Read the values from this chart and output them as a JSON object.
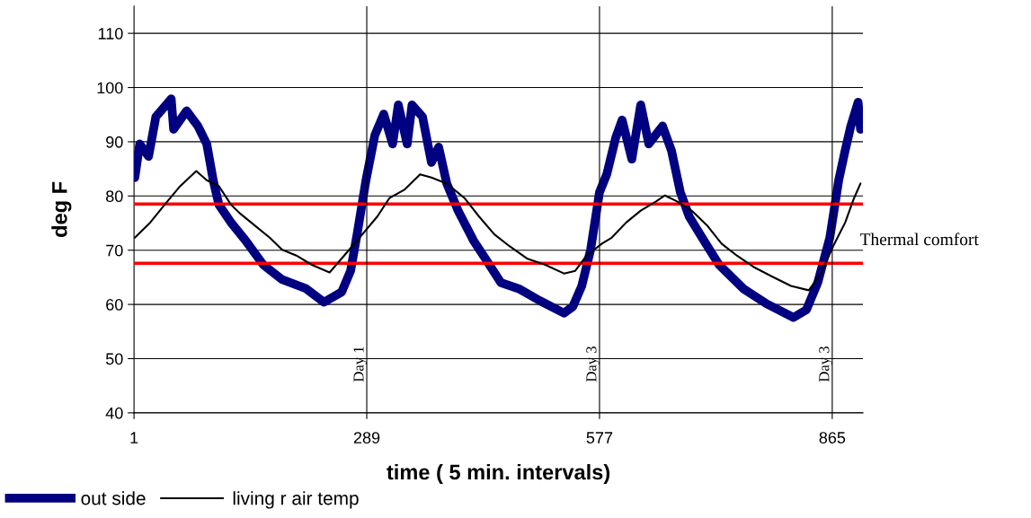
{
  "chart_data": {
    "type": "line",
    "xlabel": "time ( 5 min. intervals)",
    "ylabel": "deg F",
    "xlim": [
      1,
      903
    ],
    "xticks": [
      1,
      289,
      577,
      865
    ],
    "ylim": [
      40,
      115
    ],
    "yticks": [
      40,
      50,
      60,
      70,
      80,
      90,
      100,
      110
    ],
    "grid": "y",
    "legend": "bottom left",
    "marker": "none",
    "line_style": "solid",
    "series": [
      {
        "name": "out side",
        "color": "#000080",
        "x": [
          2,
          8,
          19,
          28,
          47,
          50,
          66,
          80,
          91,
          99,
          106,
          121,
          139,
          161,
          184,
          214,
          236,
          258,
          269,
          277,
          288,
          299,
          310,
          321,
          328,
          339,
          345,
          358,
          369,
          378,
          388,
          402,
          421,
          436,
          455,
          477,
          503,
          533,
          544,
          555,
          566,
          577,
          586,
          597,
          605,
          617,
          628,
          638,
          655,
          666,
          677,
          688,
          706,
          725,
          755,
          784,
          817,
          833,
          847,
          862,
          873,
          881,
          888,
          897,
          900
        ],
        "values": [
          83.4,
          89.6,
          87.3,
          94.6,
          97.9,
          92.3,
          95.7,
          92.9,
          89.6,
          82.9,
          78.4,
          75.1,
          71.8,
          67.3,
          64.6,
          62.9,
          60.4,
          62.3,
          66.2,
          72.9,
          82.9,
          91.2,
          95.1,
          89.6,
          96.8,
          89.6,
          96.8,
          94.6,
          86.2,
          89.0,
          82.3,
          77.3,
          71.8,
          68.4,
          64.0,
          62.9,
          60.7,
          58.4,
          59.6,
          63.4,
          70.1,
          80.7,
          84.0,
          90.7,
          94.0,
          86.8,
          96.8,
          89.6,
          92.9,
          88.4,
          80.7,
          76.2,
          71.8,
          67.3,
          62.9,
          60.1,
          57.6,
          59.0,
          64.0,
          72.3,
          82.9,
          88.4,
          92.9,
          97.3,
          92.3
        ]
      },
      {
        "name": "living r air temp",
        "color": "#000000",
        "x": [
          2,
          21,
          39,
          58,
          78,
          91,
          106,
          121,
          132,
          150,
          169,
          184,
          202,
          221,
          243,
          261,
          280,
          302,
          317,
          336,
          355,
          369,
          388,
          410,
          428,
          447,
          466,
          488,
          510,
          533,
          547,
          561,
          580,
          592,
          610,
          628,
          647,
          658,
          673,
          691,
          710,
          728,
          747,
          769,
          791,
          814,
          836,
          851,
          866,
          881,
          892,
          900
        ],
        "values": [
          72.3,
          75.1,
          78.4,
          81.8,
          84.6,
          82.9,
          81.8,
          78.4,
          76.8,
          74.6,
          72.3,
          70.1,
          69.0,
          67.3,
          65.9,
          69.0,
          72.3,
          76.2,
          79.6,
          81.2,
          84.0,
          83.4,
          82.3,
          79.6,
          76.2,
          72.9,
          70.7,
          68.4,
          67.3,
          65.7,
          66.2,
          69.0,
          71.2,
          72.3,
          75.1,
          77.3,
          79.0,
          80.1,
          79.0,
          77.3,
          74.6,
          71.2,
          69.0,
          66.8,
          65.1,
          63.4,
          62.6,
          65.7,
          70.7,
          75.1,
          79.6,
          82.3
        ]
      }
    ],
    "ref_lines": [
      {
        "axis": "y",
        "value": 78.5,
        "color": "#ff0000"
      },
      {
        "axis": "y",
        "value": 67.6,
        "color": "#ff0000"
      },
      {
        "axis": "x",
        "value": 289,
        "label": "Day 1",
        "color": "#000000"
      },
      {
        "axis": "x",
        "value": 577,
        "label": "Day 3",
        "color": "#000000"
      },
      {
        "axis": "x",
        "value": 865,
        "label": "Day 3",
        "color": "#000000"
      }
    ],
    "annotations": [
      "Thermal comfort"
    ]
  }
}
